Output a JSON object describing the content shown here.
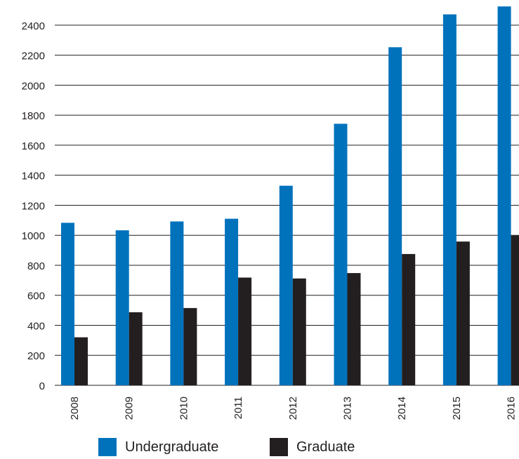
{
  "chart_data": {
    "type": "bar",
    "title": "",
    "xlabel": "",
    "ylabel": "",
    "categories": [
      "2008",
      "2009",
      "2010",
      "2011",
      "2012",
      "2013",
      "2014",
      "2015",
      "2016"
    ],
    "series": [
      {
        "name": "Undergraduate",
        "color": "#0072bc",
        "values": [
          1083,
          1033,
          1092,
          1110,
          1330,
          1743,
          2253,
          2472,
          2525
        ]
      },
      {
        "name": "Graduate",
        "color": "#231f20",
        "values": [
          320,
          487,
          515,
          718,
          712,
          748,
          875,
          958,
          998
        ]
      }
    ],
    "yticks": [
      "0",
      "200",
      "400",
      "600",
      "800",
      "1000",
      "1200",
      "1400",
      "1600",
      "1800",
      "2000",
      "2200",
      "2400"
    ],
    "ylim": [
      0,
      2525
    ],
    "grid": true,
    "legend_position": "bottom"
  }
}
